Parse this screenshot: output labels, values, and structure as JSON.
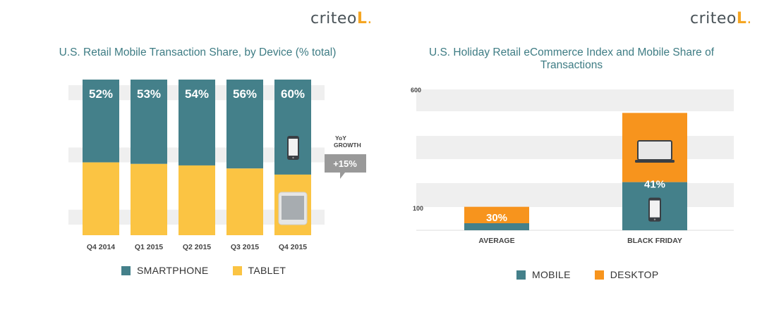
{
  "brand": {
    "name": "criteo"
  },
  "colors": {
    "smartphone": "#44808a",
    "tablet": "#fbc443",
    "desktop": "#f7941d",
    "mobile": "#44808a",
    "stripe": "#efefef",
    "growth_badge": "#999999"
  },
  "chart_data": [
    {
      "type": "bar",
      "stacked": true,
      "title": "U.S. Retail Mobile Transaction Share, by Device (% total)",
      "categories": [
        "Q4 2014",
        "Q1 2015",
        "Q2 2015",
        "Q3 2015",
        "Q4 2015"
      ],
      "series": [
        {
          "name": "SMARTPHONE",
          "values": [
            52,
            53,
            54,
            56,
            60
          ],
          "labels": [
            "52%",
            "53%",
            "54%",
            "56%",
            "60%"
          ]
        },
        {
          "name": "TABLET",
          "values": [
            48,
            47,
            46,
            44,
            40
          ]
        }
      ],
      "ylim": [
        0,
        100
      ],
      "legend": "bottom",
      "annotation": {
        "label": "YoY GROWTH",
        "value": "+15%"
      },
      "icons": [
        "smartphone-icon",
        "tablet-icon"
      ]
    },
    {
      "type": "bar",
      "stacked": true,
      "title": "U.S. Holiday Retail eCommerce Index and Mobile Share of Transactions",
      "categories": [
        "AVERAGE",
        "BLACK FRIDAY"
      ],
      "series": [
        {
          "name": "MOBILE",
          "values": [
            30,
            205
          ],
          "labels": [
            "30%",
            "41%"
          ]
        },
        {
          "name": "DESKTOP",
          "values": [
            70,
            295
          ]
        }
      ],
      "ylim": [
        0,
        600
      ],
      "yticks": [
        100,
        600
      ],
      "legend": "bottom",
      "icons": [
        "laptop-icon",
        "smartphone-icon"
      ]
    }
  ]
}
